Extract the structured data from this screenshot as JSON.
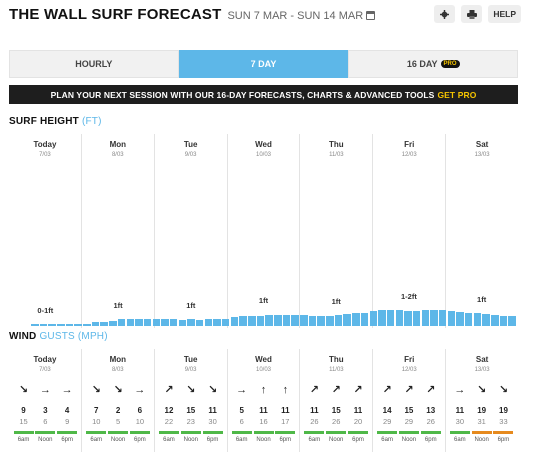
{
  "header": {
    "title": "THE WALL SURF FORECAST",
    "date_range": "SUN 7 MAR - SUN 14 MAR",
    "help_label": "HELP"
  },
  "tabs": [
    {
      "label": "HOURLY"
    },
    {
      "label": "7 DAY",
      "active": true
    },
    {
      "label": "16 DAY",
      "badge": "PRO"
    }
  ],
  "banner": {
    "text": "PLAN YOUR NEXT SESSION WITH OUR 16-DAY FORECASTS, CHARTS & ADVANCED TOOLS",
    "cta": "GET PRO"
  },
  "surf": {
    "title": "SURF HEIGHT",
    "unit": "(FT)",
    "labels": [
      "0-1ft",
      "1ft",
      "1ft",
      "1ft",
      "1ft",
      "1-2ft",
      "1ft"
    ],
    "heights_relative": [
      0.05,
      0.05,
      0.05,
      0.05,
      0.05,
      0.05,
      0.05,
      0.12,
      0.12,
      0.18,
      0.25,
      0.25,
      0.25,
      0.25,
      0.25,
      0.25,
      0.22,
      0.2,
      0.22,
      0.2,
      0.25,
      0.25,
      0.25,
      0.3,
      0.35,
      0.35,
      0.35,
      0.38,
      0.38,
      0.38,
      0.38,
      0.38,
      0.35,
      0.35,
      0.35,
      0.38,
      0.4,
      0.42,
      0.45,
      0.5,
      0.52,
      0.55,
      0.55,
      0.5,
      0.5,
      0.52,
      0.55,
      0.55,
      0.5,
      0.48,
      0.45,
      0.42,
      0.4,
      0.38,
      0.35,
      0.32
    ]
  },
  "wind": {
    "title": "WIND",
    "unit": "GUSTS (MPH)",
    "times": [
      "6am",
      "Noon",
      "6pm"
    ],
    "colors": {
      "green": "#4fb848",
      "orange": "#e68a1e"
    }
  },
  "days": [
    {
      "name": "Today",
      "date": "7/03"
    },
    {
      "name": "Mon",
      "date": "8/03"
    },
    {
      "name": "Tue",
      "date": "9/03"
    },
    {
      "name": "Wed",
      "date": "10/03"
    },
    {
      "name": "Thu",
      "date": "11/03"
    },
    {
      "name": "Fri",
      "date": "12/03"
    },
    {
      "name": "Sat",
      "date": "13/03"
    }
  ],
  "wind_cells": [
    {
      "arrow": "↘",
      "speed": "9",
      "gust": "15",
      "time": "6am",
      "color": "green"
    },
    {
      "arrow": "→",
      "speed": "3",
      "gust": "6",
      "time": "Noon",
      "color": "green"
    },
    {
      "arrow": "→",
      "speed": "4",
      "gust": "9",
      "time": "6pm",
      "color": "green"
    },
    {
      "arrow": "↘",
      "speed": "7",
      "gust": "10",
      "time": "6am",
      "color": "green"
    },
    {
      "arrow": "↘",
      "speed": "2",
      "gust": "5",
      "time": "Noon",
      "color": "green"
    },
    {
      "arrow": "→",
      "speed": "6",
      "gust": "10",
      "time": "6pm",
      "color": "green"
    },
    {
      "arrow": "↗",
      "speed": "12",
      "gust": "22",
      "time": "6am",
      "color": "green"
    },
    {
      "arrow": "↘",
      "speed": "15",
      "gust": "23",
      "time": "Noon",
      "color": "green"
    },
    {
      "arrow": "↘",
      "speed": "11",
      "gust": "30",
      "time": "6pm",
      "color": "green"
    },
    {
      "arrow": "→",
      "speed": "5",
      "gust": "6",
      "time": "6am",
      "color": "green"
    },
    {
      "arrow": "↑",
      "speed": "11",
      "gust": "16",
      "time": "Noon",
      "color": "green"
    },
    {
      "arrow": "↑",
      "speed": "11",
      "gust": "17",
      "time": "6pm",
      "color": "green"
    },
    {
      "arrow": "↗",
      "speed": "11",
      "gust": "26",
      "time": "6am",
      "color": "green"
    },
    {
      "arrow": "↗",
      "speed": "15",
      "gust": "26",
      "time": "Noon",
      "color": "green"
    },
    {
      "arrow": "↗",
      "speed": "11",
      "gust": "20",
      "time": "6pm",
      "color": "green"
    },
    {
      "arrow": "↗",
      "speed": "14",
      "gust": "29",
      "time": "6am",
      "color": "green"
    },
    {
      "arrow": "↗",
      "speed": "15",
      "gust": "29",
      "time": "Noon",
      "color": "green"
    },
    {
      "arrow": "↗",
      "speed": "13",
      "gust": "26",
      "time": "6pm",
      "color": "green"
    },
    {
      "arrow": "→",
      "speed": "11",
      "gust": "30",
      "time": "6am",
      "color": "green"
    },
    {
      "arrow": "↘",
      "speed": "19",
      "gust": "31",
      "time": "Noon",
      "color": "orange"
    },
    {
      "arrow": "↘",
      "speed": "19",
      "gust": "33",
      "time": "6pm",
      "color": "orange"
    }
  ]
}
